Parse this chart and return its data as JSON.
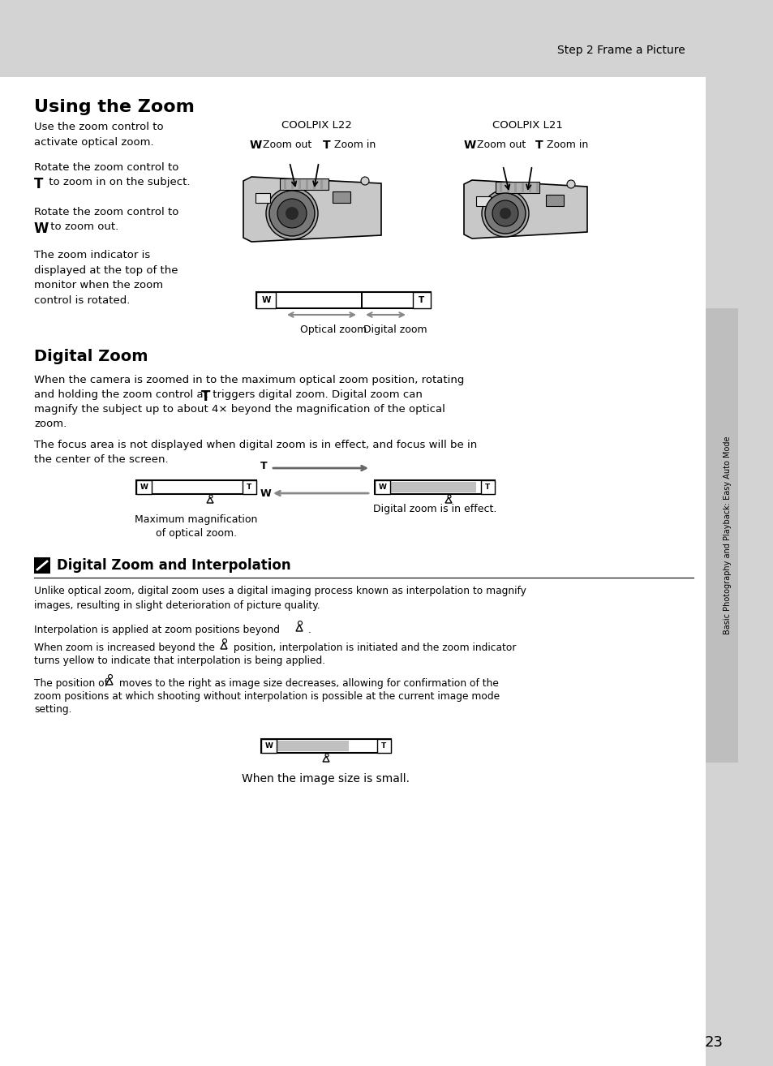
{
  "bg_color": "#d3d3d3",
  "content_bg": "#ffffff",
  "page_number": "23",
  "header_text": "Step 2 Frame a Picture",
  "sidebar_text": "Basic Photography and Playback: Easy Auto Mode",
  "section1_title": "Using the Zoom",
  "coolpix_l22_label": "COOLPIX L22",
  "coolpix_l21_label": "COOLPIX L21",
  "optical_zoom_label": "Optical zoom",
  "digital_zoom_label": "Digital zoom",
  "section2_title": "Digital Zoom",
  "max_mag_label": "Maximum magnification\nof optical zoom.",
  "digital_zoom_effect_label": "Digital zoom is in effect.",
  "section3_title": "Digital Zoom and Interpolation",
  "small_image_label": "When the image size is small."
}
